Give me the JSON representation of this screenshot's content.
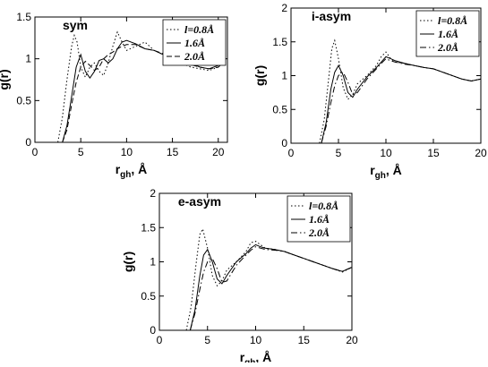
{
  "chart_data": [
    {
      "type": "line",
      "title": "sym",
      "xlabel": "r",
      "xlabel_sub": "gh",
      "xlabel_suffix": ", Å",
      "ylabel": "g(r)",
      "xlim": [
        0,
        21
      ],
      "ylim": [
        0,
        1.5
      ],
      "xticks": [
        "0",
        "5",
        "10",
        "15",
        "20"
      ],
      "yticks": [
        "0",
        "0.5",
        "1",
        "1.5"
      ],
      "grid": false,
      "legend_position": "top-right",
      "series": [
        {
          "name": "l=0.8Å",
          "style": "dotted",
          "x": [
            2.5,
            3,
            3.5,
            4,
            4.3,
            4.6,
            5,
            5.5,
            6,
            6.5,
            7,
            7.5,
            8,
            8.5,
            9,
            9.5,
            10,
            11,
            12,
            13,
            14,
            15,
            16,
            17,
            18,
            19,
            20,
            20.5
          ],
          "y": [
            0,
            0.3,
            0.75,
            1.15,
            1.28,
            1.2,
            0.9,
            0.78,
            0.9,
            0.95,
            0.85,
            0.8,
            0.95,
            1.15,
            1.32,
            1.2,
            1.1,
            1.15,
            1.2,
            1.1,
            1.05,
            1.0,
            0.95,
            0.9,
            0.88,
            0.86,
            0.9,
            0.97
          ]
        },
        {
          "name": "1.6Å",
          "style": "solid",
          "x": [
            3,
            3.5,
            4,
            4.5,
            5,
            5.5,
            6,
            6.5,
            7,
            7.5,
            8,
            8.5,
            9,
            9.5,
            10,
            11,
            12,
            13,
            14,
            15,
            16,
            17,
            18,
            19,
            20,
            20.5
          ],
          "y": [
            0,
            0.2,
            0.55,
            0.9,
            1.05,
            0.85,
            0.77,
            0.85,
            0.98,
            1.0,
            0.95,
            1.0,
            1.12,
            1.2,
            1.22,
            1.18,
            1.12,
            1.1,
            1.05,
            1.02,
            0.98,
            0.95,
            0.9,
            0.88,
            0.92,
            0.97
          ]
        },
        {
          "name": "2.0Å",
          "style": "dashed",
          "x": [
            3,
            3.5,
            4,
            4.5,
            5,
            5.5,
            6,
            6.5,
            7,
            7.5,
            8,
            8.5,
            9,
            9.5,
            10,
            11,
            12,
            13,
            14,
            15,
            16,
            17,
            18,
            19,
            20,
            20.5
          ],
          "y": [
            0,
            0.15,
            0.45,
            0.72,
            0.9,
            0.97,
            0.92,
            0.86,
            0.9,
            1.0,
            1.05,
            1.08,
            1.12,
            1.15,
            1.17,
            1.17,
            1.12,
            1.1,
            1.06,
            1.02,
            0.97,
            0.93,
            0.9,
            0.88,
            0.9,
            0.95
          ]
        }
      ]
    },
    {
      "type": "line",
      "title": "i-asym",
      "xlabel": "r",
      "xlabel_sub": "gh",
      "xlabel_suffix": ", Å",
      "ylabel": "g(r)",
      "xlim": [
        0,
        20
      ],
      "ylim": [
        0,
        2
      ],
      "xticks": [
        "0",
        "5",
        "10",
        "15",
        "20"
      ],
      "yticks": [
        "0",
        "0.5",
        "1",
        "1.5",
        "2"
      ],
      "grid": false,
      "legend_position": "top-right",
      "series": [
        {
          "name": "l=0.8Å",
          "style": "dotted",
          "x": [
            3,
            3.5,
            4,
            4.3,
            4.6,
            5,
            5.5,
            6,
            6.5,
            7,
            8,
            9,
            9.5,
            10,
            10.5,
            11,
            12,
            13,
            14,
            15,
            16,
            17,
            18,
            19,
            20
          ],
          "y": [
            0,
            0.35,
            1.0,
            1.4,
            1.52,
            1.25,
            0.82,
            0.65,
            0.72,
            0.88,
            1.0,
            1.15,
            1.28,
            1.35,
            1.25,
            1.2,
            1.18,
            1.15,
            1.12,
            1.1,
            1.05,
            1.0,
            0.95,
            0.92,
            0.95
          ]
        },
        {
          "name": "1.6Å",
          "style": "solid",
          "x": [
            3.2,
            3.7,
            4.2,
            4.6,
            5,
            5.5,
            6,
            6.5,
            7,
            8,
            9,
            9.5,
            10,
            10.5,
            11,
            12,
            13,
            14,
            15,
            16,
            17,
            18,
            19,
            20
          ],
          "y": [
            0,
            0.3,
            0.8,
            1.05,
            1.15,
            1.0,
            0.75,
            0.68,
            0.8,
            0.98,
            1.12,
            1.2,
            1.28,
            1.25,
            1.22,
            1.18,
            1.15,
            1.12,
            1.1,
            1.05,
            1.0,
            0.95,
            0.92,
            0.95
          ]
        },
        {
          "name": "2.0Å",
          "style": "dashdot",
          "x": [
            3.2,
            3.7,
            4.2,
            4.6,
            5,
            5.5,
            6,
            6.5,
            7,
            8,
            9,
            9.5,
            10,
            10.5,
            11,
            12,
            13,
            14,
            15,
            16,
            17,
            18,
            19,
            20
          ],
          "y": [
            0,
            0.25,
            0.6,
            0.85,
            1.0,
            1.05,
            0.9,
            0.72,
            0.75,
            0.95,
            1.1,
            1.18,
            1.25,
            1.22,
            1.2,
            1.17,
            1.15,
            1.12,
            1.1,
            1.05,
            1.0,
            0.95,
            0.92,
            0.95
          ]
        }
      ]
    },
    {
      "type": "line",
      "title": "e-asym",
      "xlabel": "r",
      "xlabel_sub": "gh",
      "xlabel_suffix": ", Å",
      "ylabel": "g(r)",
      "xlim": [
        0,
        20
      ],
      "ylim": [
        0,
        2
      ],
      "xticks": [
        "0",
        "5",
        "10",
        "15",
        "20"
      ],
      "yticks": [
        "0",
        "0.5",
        "1",
        "1.5",
        "2"
      ],
      "grid": false,
      "legend_position": "top-right",
      "series": [
        {
          "name": "l=0.8Å",
          "style": "dotted",
          "x": [
            2.8,
            3.3,
            3.8,
            4.2,
            4.5,
            5,
            5.5,
            6,
            6.5,
            7,
            8,
            9,
            9.5,
            10,
            10.5,
            11,
            12,
            13,
            14,
            15,
            16,
            17,
            18,
            19,
            20
          ],
          "y": [
            0,
            0.35,
            0.95,
            1.4,
            1.48,
            1.2,
            0.8,
            0.65,
            0.72,
            0.88,
            1.0,
            1.15,
            1.28,
            1.3,
            1.25,
            1.2,
            1.18,
            1.15,
            1.1,
            1.05,
            1.0,
            0.95,
            0.9,
            0.85,
            0.92
          ]
        },
        {
          "name": "1.6Å",
          "style": "solid",
          "x": [
            3.2,
            3.7,
            4.2,
            4.6,
            5,
            5.5,
            6,
            6.5,
            7,
            8,
            9,
            9.5,
            10,
            10.5,
            11,
            12,
            13,
            14,
            15,
            16,
            17,
            18,
            19,
            20
          ],
          "y": [
            0,
            0.3,
            0.8,
            1.1,
            1.18,
            1.0,
            0.75,
            0.68,
            0.8,
            1.0,
            1.12,
            1.2,
            1.25,
            1.22,
            1.2,
            1.18,
            1.15,
            1.1,
            1.05,
            1.0,
            0.95,
            0.9,
            0.86,
            0.92
          ]
        },
        {
          "name": "2.0Å",
          "style": "dashdot",
          "x": [
            3.2,
            3.7,
            4.2,
            4.6,
            5,
            5.5,
            6,
            6.5,
            7,
            8,
            9,
            9.5,
            10,
            10.5,
            11,
            12,
            13,
            14,
            15,
            16,
            17,
            18,
            19,
            20
          ],
          "y": [
            0,
            0.25,
            0.6,
            0.85,
            1.0,
            1.05,
            0.9,
            0.7,
            0.72,
            0.95,
            1.1,
            1.17,
            1.22,
            1.2,
            1.18,
            1.17,
            1.15,
            1.1,
            1.05,
            1.0,
            0.95,
            0.9,
            0.86,
            0.92
          ]
        }
      ]
    }
  ]
}
